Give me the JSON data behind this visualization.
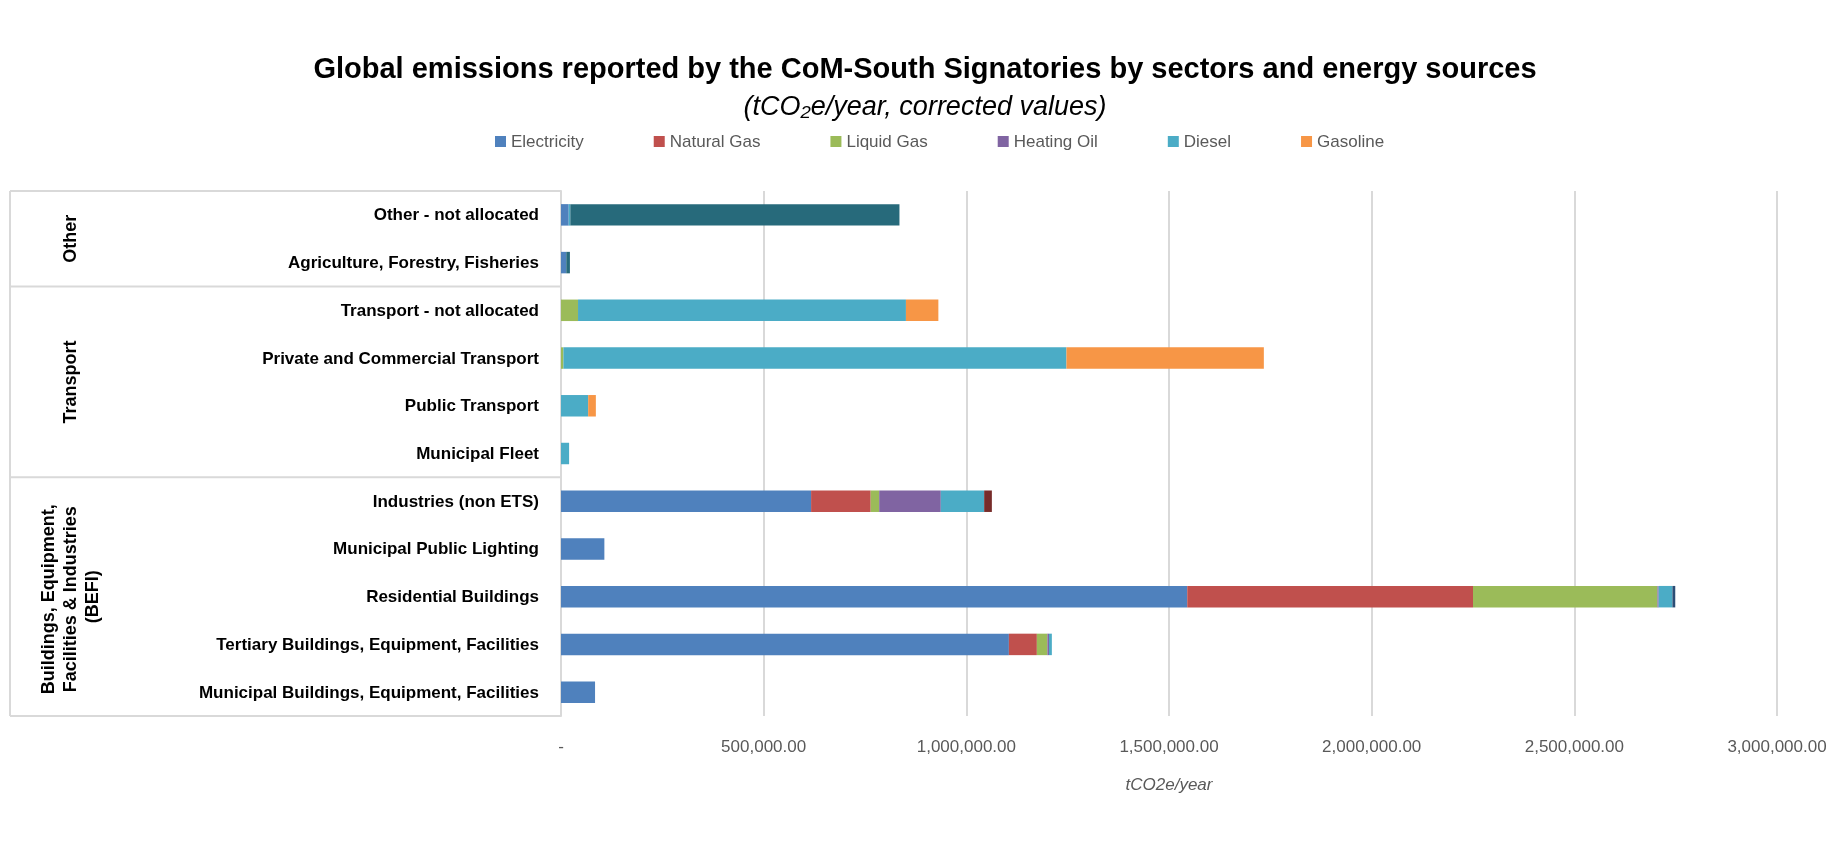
{
  "chart_data": {
    "type": "bar",
    "orientation": "horizontal",
    "stacked": true,
    "title": "Global emissions reported by the CoM-South Signatories by sectors and energy sources",
    "subtitle": "(tCO₂e/year, corrected values)",
    "xlabel": "tCO2e/year",
    "categories": [
      "Other - not allocated",
      "Agriculture, Forestry, Fisheries",
      "Transport - not allocated",
      "Private and Commercial Transport",
      "Public Transport",
      "Municipal Fleet",
      "Industries (non ETS)",
      "Municipal Public Lighting",
      "Residential Buildings",
      "Tertiary Buildings, Equipment, Facilities",
      "Municipal Buildings, Equipment, Facilities"
    ],
    "series": [
      {
        "name": "Electricity",
        "color": "#4f81bd",
        "values": [
          19000,
          13000,
          0,
          0,
          0,
          0,
          617000,
          107000,
          1545000,
          1105000,
          84000
        ]
      },
      {
        "name": "Natural Gas",
        "color": "#c0504d",
        "values": [
          0,
          0,
          0,
          0,
          0,
          0,
          147000,
          0,
          705000,
          69000,
          0
        ]
      },
      {
        "name": "Liquid Gas",
        "color": "#9bbb59",
        "values": [
          0,
          0,
          42000,
          6000,
          0,
          0,
          21000,
          0,
          455000,
          26000,
          0
        ]
      },
      {
        "name": "Heating Oil",
        "color": "#8064a2",
        "values": [
          0,
          0,
          0,
          0,
          0,
          0,
          152000,
          0,
          3000,
          4000,
          0
        ]
      },
      {
        "name": "Diesel",
        "color": "#4bacc6",
        "values": [
          4000,
          0,
          809000,
          1241000,
          67000,
          20000,
          107000,
          0,
          34000,
          7000,
          0
        ]
      },
      {
        "name": "Gasoline",
        "color": "#f79646",
        "values": [
          0,
          0,
          80000,
          487000,
          19000,
          0,
          0,
          0,
          0,
          0,
          0
        ]
      },
      {
        "color": "#772c2a",
        "values": [
          0,
          0,
          0,
          0,
          0,
          0,
          19000,
          0,
          0,
          0,
          0
        ]
      },
      {
        "color": "#2c4d75",
        "values": [
          0,
          0,
          0,
          0,
          0,
          0,
          0,
          0,
          7000,
          0,
          0
        ]
      },
      {
        "color": "#276a7b",
        "values": [
          812000,
          9000,
          0,
          0,
          0,
          0,
          0,
          0,
          0,
          0,
          0
        ]
      }
    ],
    "xlim": [
      0,
      3000000
    ],
    "xticks": [
      {
        "value": 0,
        "label": "-"
      },
      {
        "value": 500000,
        "label": "500,000.00"
      },
      {
        "value": 1000000,
        "label": "1,000,000.00"
      },
      {
        "value": 1500000,
        "label": "1,500,000.00"
      },
      {
        "value": 2000000,
        "label": "2,000,000.00"
      },
      {
        "value": 2500000,
        "label": "2,500,000.00"
      },
      {
        "value": 3000000,
        "label": "3,000,000.00"
      }
    ],
    "annotations": [
      "Other",
      "Transport",
      "Buildings, Equipment, Facilities & Industries (BEFI)"
    ],
    "grid": "x",
    "legend": "top"
  }
}
